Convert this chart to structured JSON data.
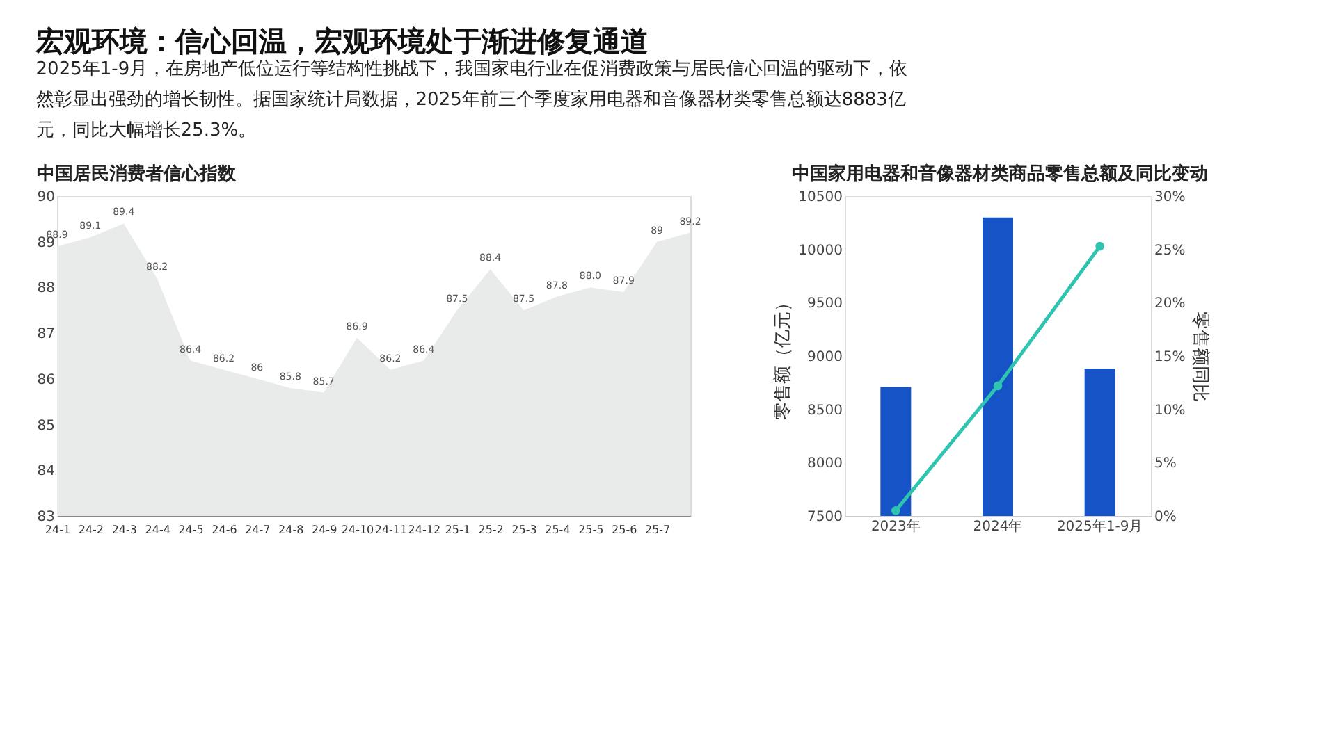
{
  "chart_data": [
    {
      "type": "area",
      "title": "中国居民消费者信心指数",
      "annotations": [
        "宏观环境：信心回温，宏观环境处于渐进修复通道",
        "2025年1-9月，在房地产低位运行等结构性挑战下，我国家电行业在促消费政策与居民信心回温的驱动下，依然彰显出强劲的增长韧性。据国家统计局数据，2025年前三个季度家用电器和音像器材类零售总额达8883亿元，同比大幅增长25.3%。"
      ],
      "categories": [
        "24-1",
        "24-2",
        "24-3",
        "24-4",
        "24-5",
        "24-6",
        "24-7",
        "24-8",
        "24-9",
        "24-10",
        "24-11",
        "24-12",
        "25-1",
        "25-2",
        "25-3",
        "25-4",
        "25-5",
        "25-6",
        "25-7",
        null
      ],
      "values": [
        88.9,
        89.1,
        89.4,
        88.2,
        86.4,
        86.2,
        86,
        85.8,
        85.7,
        86.9,
        86.2,
        86.4,
        87.5,
        88.4,
        87.5,
        87.8,
        88.0,
        87.9,
        89,
        89.2
      ],
      "value_labels": [
        "88.9",
        "89.1",
        "89.4",
        "88.2",
        "86.4",
        "86.2",
        "86",
        "85.8",
        "85.7",
        "86.9",
        "86.2",
        "86.4",
        "87.5",
        "88.4",
        "87.5",
        "87.8",
        "88.0",
        "87.9",
        "89",
        "89.2"
      ],
      "color": "#e9ebeb",
      "ylim": [
        83,
        90
      ],
      "yticks": [
        83,
        84,
        85,
        86,
        87,
        88,
        89,
        90
      ],
      "grid": false
    },
    {
      "type": "bar",
      "title": "中国家用电器和音像器材类商品零售总额及同比变动",
      "categories": [
        "2023年",
        "2024年",
        "2025年1-9月"
      ],
      "ylabel": "零售额（亿元）",
      "y2label": "零售额同比",
      "series": [
        {
          "type": "bar",
          "color": "#1553c7",
          "values": [
            8710,
            10300,
            8883
          ]
        },
        {
          "type": "line",
          "axis": "y2",
          "color": "#2ec4b0",
          "values": [
            0.5,
            12.2,
            25.3
          ]
        }
      ],
      "ylim": [
        7500,
        10500
      ],
      "yticks": [
        7500,
        8000,
        8500,
        9000,
        9500,
        10000,
        10500
      ],
      "y2lim": [
        0,
        30
      ],
      "y2ticks": [
        {
          "value": 0,
          "label": "0%"
        },
        {
          "value": 5,
          "label": "5%"
        },
        {
          "value": 10,
          "label": "10%"
        },
        {
          "value": 15,
          "label": "15%"
        },
        {
          "value": 20,
          "label": "20%"
        },
        {
          "value": 25,
          "label": "25%"
        },
        {
          "value": 30,
          "label": "30%"
        }
      ],
      "marker": "circle",
      "grid": false
    }
  ]
}
